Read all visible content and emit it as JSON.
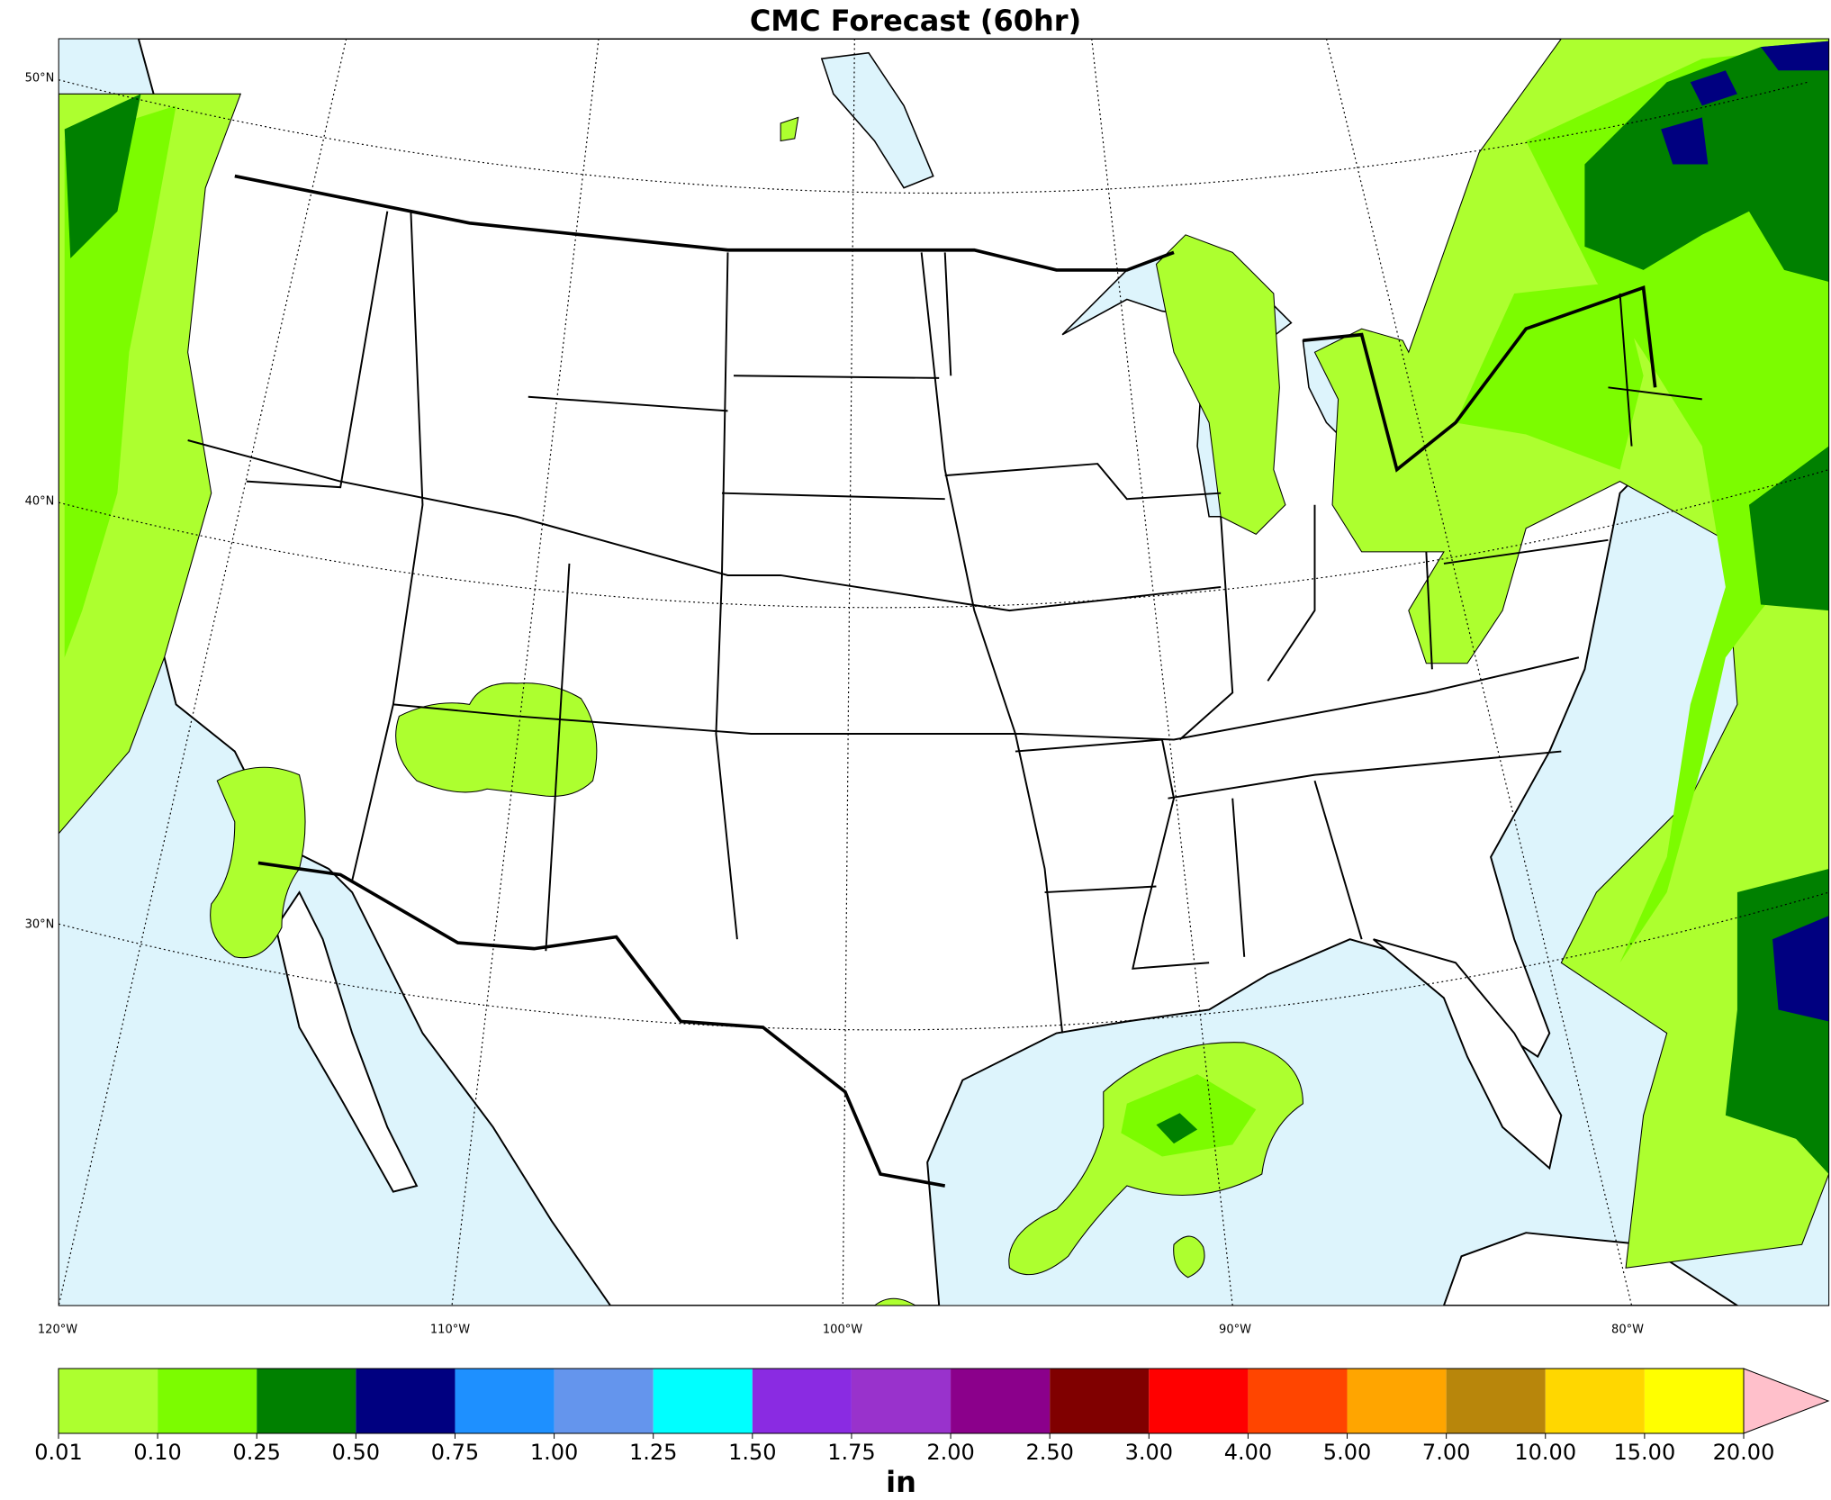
{
  "title": "CMC Forecast (60hr)",
  "map": {
    "lat_labels": [
      {
        "value": 50,
        "label": "50°N"
      },
      {
        "value": 40,
        "label": "40°N"
      },
      {
        "value": 30,
        "label": "30°N"
      }
    ],
    "lon_labels": [
      {
        "value": -120,
        "label": "120°W"
      },
      {
        "value": -110,
        "label": "110°W"
      },
      {
        "value": -100,
        "label": "100°W"
      },
      {
        "value": -90,
        "label": "90°W"
      },
      {
        "value": -80,
        "label": "80°W"
      }
    ]
  },
  "colorbar": {
    "levels": [
      {
        "value": 0.01,
        "label": "0.01"
      },
      {
        "value": 0.1,
        "label": "0.10"
      },
      {
        "value": 0.25,
        "label": "0.25"
      },
      {
        "value": 0.5,
        "label": "0.50"
      },
      {
        "value": 0.75,
        "label": "0.75"
      },
      {
        "value": 1,
        "label": "1.00"
      },
      {
        "value": 1.25,
        "label": "1.25"
      },
      {
        "value": 1.5,
        "label": "1.50"
      },
      {
        "value": 1.75,
        "label": "1.75"
      },
      {
        "value": 2,
        "label": "2.00"
      },
      {
        "value": 2.5,
        "label": "2.50"
      },
      {
        "value": 3,
        "label": "3.00"
      },
      {
        "value": 4,
        "label": "4.00"
      },
      {
        "value": 5,
        "label": "5.00"
      },
      {
        "value": 7,
        "label": "7.00"
      },
      {
        "value": 10,
        "label": "10.00"
      },
      {
        "value": 15,
        "label": "15.00"
      },
      {
        "value": 20,
        "label": "20.00"
      }
    ],
    "colors": [
      "#adff2f",
      "#7cfc00",
      "#008000",
      "#000080",
      "#1e90ff",
      "#6495ed",
      "#00ffff",
      "#8a2be2",
      "#9932cc",
      "#8b008b",
      "#800000",
      "#ff0000",
      "#ff4500",
      "#ffa500",
      "#b8860b",
      "#ffd700",
      "#ffff00"
    ],
    "extend_color": "#ffc0cb",
    "unit": "in"
  }
}
